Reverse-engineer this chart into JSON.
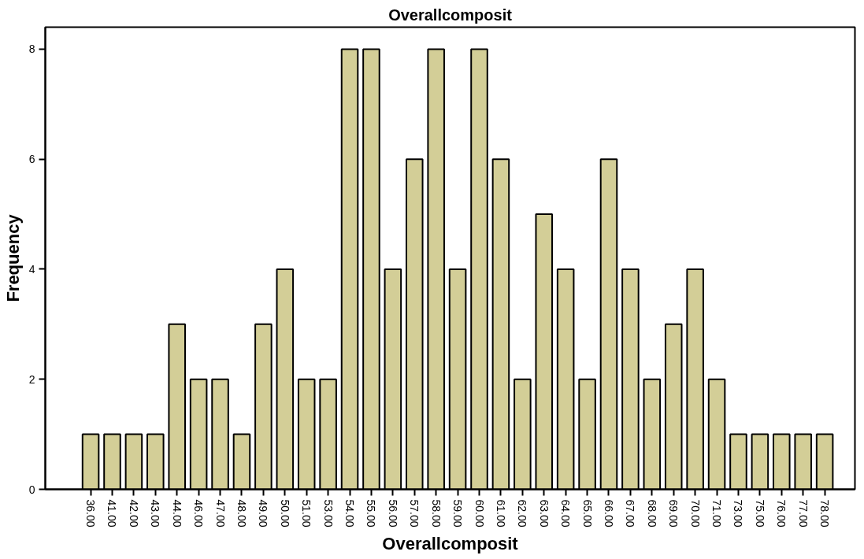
{
  "chart_data": {
    "type": "bar",
    "title": "Overallcomposit",
    "xlabel": "Overallcomposit",
    "ylabel": "Frequency",
    "categories": [
      "36.00",
      "41.00",
      "42.00",
      "43.00",
      "44.00",
      "46.00",
      "47.00",
      "48.00",
      "49.00",
      "50.00",
      "51.00",
      "53.00",
      "54.00",
      "55.00",
      "56.00",
      "57.00",
      "58.00",
      "59.00",
      "60.00",
      "61.00",
      "62.00",
      "63.00",
      "64.00",
      "65.00",
      "66.00",
      "67.00",
      "68.00",
      "69.00",
      "70.00",
      "71.00",
      "73.00",
      "75.00",
      "76.00",
      "77.00",
      "78.00"
    ],
    "values": [
      1,
      1,
      1,
      1,
      3,
      2,
      2,
      1,
      3,
      4,
      2,
      2,
      8,
      8,
      4,
      6,
      8,
      4,
      8,
      6,
      2,
      5,
      4,
      2,
      6,
      4,
      2,
      3,
      4,
      2,
      1,
      1,
      1,
      1,
      1
    ],
    "color": "#d3ce97",
    "ylim": [
      0,
      8.4
    ],
    "yticks": [
      0,
      2,
      4,
      6,
      8
    ],
    "grid": false
  }
}
